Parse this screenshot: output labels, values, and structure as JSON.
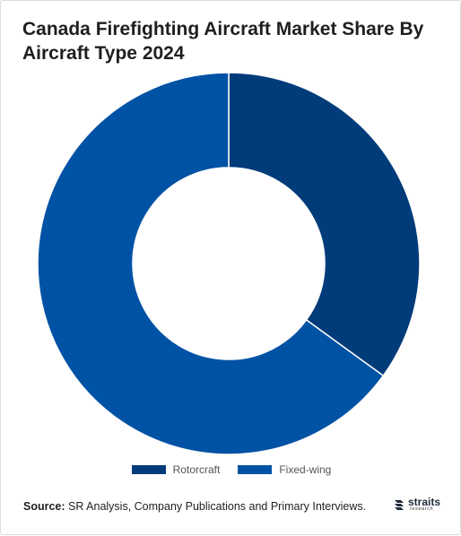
{
  "title": "Canada Firefighting Aircraft Market Share By Aircraft Type 2024",
  "chart_data": {
    "type": "pie",
    "title": "Canada Firefighting Aircraft Market Share By Aircraft Type 2024",
    "donut": true,
    "categories": [
      "Rotorcraft",
      "Fixed-wing"
    ],
    "values": [
      35,
      65
    ],
    "colors": [
      "#003b7a",
      "#0052a5"
    ],
    "legend_position": "bottom"
  },
  "legend": [
    {
      "label": "Rotorcraft",
      "color": "#003b7a"
    },
    {
      "label": "Fixed-wing",
      "color": "#0052a5"
    }
  ],
  "source": {
    "label": "Source:",
    "text": " SR Analysis, Company Publications and Primary Interviews."
  },
  "logo": {
    "main": "straits",
    "sub": "research",
    "icon": "straits-logo-icon"
  }
}
